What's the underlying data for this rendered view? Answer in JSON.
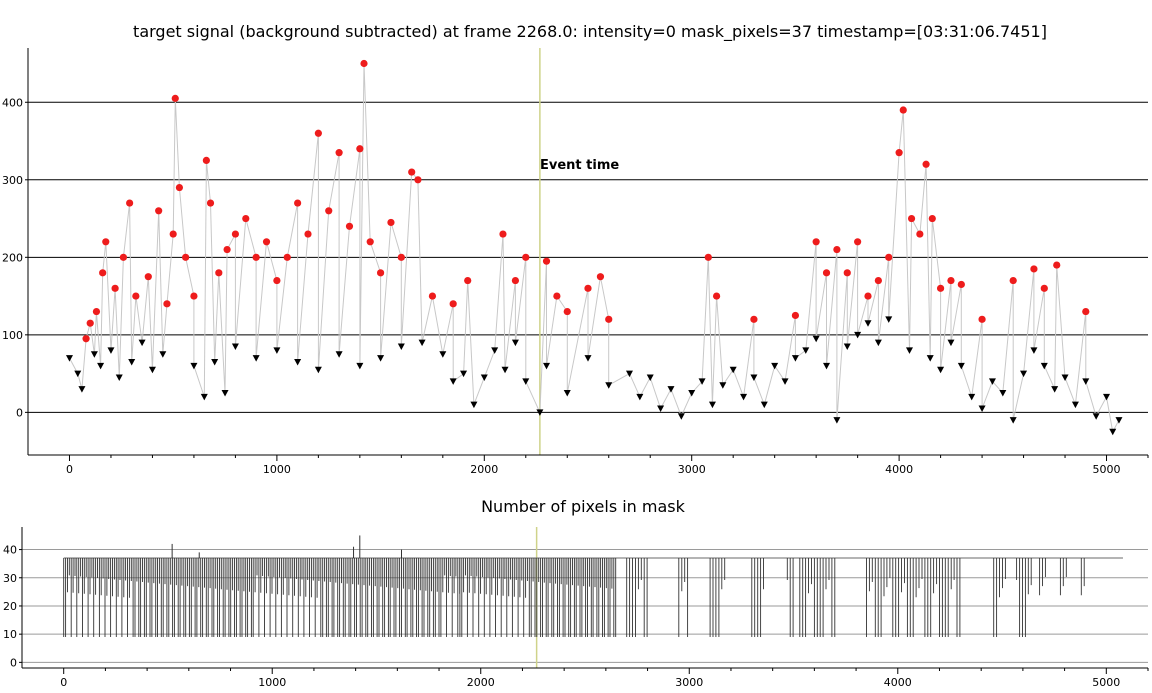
{
  "chart_data": [
    {
      "type": "scatter",
      "title": "target signal (background subtracted) at frame 2268.0: intensity=0 mask_pixels=37 timestamp=[03:31:06.7451]",
      "xlabel": "",
      "ylabel": "",
      "xlim": [
        -200,
        5200
      ],
      "ylim": [
        -55,
        470
      ],
      "xticks": [
        0,
        1000,
        2000,
        3000,
        4000,
        5000
      ],
      "yticks": [
        0,
        100,
        200,
        300,
        400
      ],
      "grid": "horizontal",
      "event_line": {
        "x": 2268,
        "label": "Event time",
        "color": "#cfd38a"
      },
      "colors": {
        "connector": "#c8c8c8",
        "high": "#ee1c1c",
        "low": "#000000"
      },
      "series": [
        {
          "marker": "circle",
          "color": "#ee1c1c",
          "points": [
            [
              80,
              95
            ],
            [
              100,
              115
            ],
            [
              130,
              130
            ],
            [
              160,
              180
            ],
            [
              175,
              220
            ],
            [
              220,
              160
            ],
            [
              260,
              200
            ],
            [
              290,
              270
            ],
            [
              320,
              150
            ],
            [
              380,
              175
            ],
            [
              430,
              260
            ],
            [
              470,
              140
            ],
            [
              500,
              230
            ],
            [
              510,
              405
            ],
            [
              530,
              290
            ],
            [
              560,
              200
            ],
            [
              600,
              150
            ],
            [
              660,
              325
            ],
            [
              680,
              270
            ],
            [
              720,
              180
            ],
            [
              760,
              210
            ],
            [
              800,
              230
            ],
            [
              850,
              250
            ],
            [
              900,
              200
            ],
            [
              950,
              220
            ],
            [
              1000,
              170
            ],
            [
              1050,
              200
            ],
            [
              1100,
              270
            ],
            [
              1150,
              230
            ],
            [
              1200,
              360
            ],
            [
              1250,
              260
            ],
            [
              1300,
              335
            ],
            [
              1350,
              240
            ],
            [
              1400,
              340
            ],
            [
              1420,
              450
            ],
            [
              1450,
              220
            ],
            [
              1500,
              180
            ],
            [
              1550,
              245
            ],
            [
              1600,
              200
            ],
            [
              1650,
              310
            ],
            [
              1680,
              300
            ],
            [
              1750,
              150
            ],
            [
              1850,
              140
            ],
            [
              1920,
              170
            ],
            [
              2090,
              230
            ],
            [
              2150,
              170
            ],
            [
              2200,
              200
            ],
            [
              2300,
              195
            ],
            [
              2350,
              150
            ],
            [
              2400,
              130
            ],
            [
              2500,
              160
            ],
            [
              2560,
              175
            ],
            [
              2600,
              120
            ],
            [
              3080,
              200
            ],
            [
              3120,
              150
            ],
            [
              3300,
              120
            ],
            [
              3500,
              125
            ],
            [
              3600,
              220
            ],
            [
              3650,
              180
            ],
            [
              3700,
              210
            ],
            [
              3750,
              180
            ],
            [
              3800,
              220
            ],
            [
              3850,
              150
            ],
            [
              3900,
              170
            ],
            [
              3950,
              200
            ],
            [
              4000,
              335
            ],
            [
              4020,
              390
            ],
            [
              4060,
              250
            ],
            [
              4100,
              230
            ],
            [
              4130,
              320
            ],
            [
              4160,
              250
            ],
            [
              4200,
              160
            ],
            [
              4250,
              170
            ],
            [
              4300,
              165
            ],
            [
              4400,
              120
            ],
            [
              4550,
              170
            ],
            [
              4650,
              185
            ],
            [
              4700,
              160
            ],
            [
              4760,
              190
            ],
            [
              4900,
              130
            ]
          ]
        },
        {
          "marker": "triangle-down",
          "color": "#000000",
          "points": [
            [
              0,
              70
            ],
            [
              40,
              50
            ],
            [
              60,
              30
            ],
            [
              120,
              75
            ],
            [
              150,
              60
            ],
            [
              200,
              80
            ],
            [
              240,
              45
            ],
            [
              300,
              65
            ],
            [
              350,
              90
            ],
            [
              400,
              55
            ],
            [
              450,
              75
            ],
            [
              600,
              60
            ],
            [
              650,
              20
            ],
            [
              700,
              65
            ],
            [
              750,
              25
            ],
            [
              800,
              85
            ],
            [
              900,
              70
            ],
            [
              1000,
              80
            ],
            [
              1100,
              65
            ],
            [
              1200,
              55
            ],
            [
              1300,
              75
            ],
            [
              1400,
              60
            ],
            [
              1500,
              70
            ],
            [
              1600,
              85
            ],
            [
              1700,
              90
            ],
            [
              1800,
              75
            ],
            [
              1850,
              40
            ],
            [
              1900,
              50
            ],
            [
              1950,
              10
            ],
            [
              2000,
              45
            ],
            [
              2050,
              80
            ],
            [
              2100,
              55
            ],
            [
              2150,
              90
            ],
            [
              2200,
              40
            ],
            [
              2268,
              0
            ],
            [
              2300,
              60
            ],
            [
              2400,
              25
            ],
            [
              2500,
              70
            ],
            [
              2600,
              35
            ],
            [
              2700,
              50
            ],
            [
              2750,
              20
            ],
            [
              2800,
              45
            ],
            [
              2850,
              5
            ],
            [
              2900,
              30
            ],
            [
              2950,
              -5
            ],
            [
              3000,
              25
            ],
            [
              3050,
              40
            ],
            [
              3100,
              10
            ],
            [
              3150,
              35
            ],
            [
              3200,
              55
            ],
            [
              3250,
              20
            ],
            [
              3300,
              45
            ],
            [
              3350,
              10
            ],
            [
              3400,
              60
            ],
            [
              3450,
              40
            ],
            [
              3500,
              70
            ],
            [
              3550,
              80
            ],
            [
              3600,
              95
            ],
            [
              3650,
              60
            ],
            [
              3700,
              -10
            ],
            [
              3750,
              85
            ],
            [
              3800,
              100
            ],
            [
              3850,
              115
            ],
            [
              3900,
              90
            ],
            [
              3950,
              120
            ],
            [
              4050,
              80
            ],
            [
              4150,
              70
            ],
            [
              4200,
              55
            ],
            [
              4250,
              90
            ],
            [
              4300,
              60
            ],
            [
              4350,
              20
            ],
            [
              4400,
              5
            ],
            [
              4450,
              40
            ],
            [
              4500,
              25
            ],
            [
              4550,
              -10
            ],
            [
              4600,
              50
            ],
            [
              4650,
              80
            ],
            [
              4700,
              60
            ],
            [
              4750,
              30
            ],
            [
              4800,
              45
            ],
            [
              4850,
              10
            ],
            [
              4900,
              40
            ],
            [
              4950,
              -5
            ],
            [
              5000,
              20
            ],
            [
              5030,
              -25
            ],
            [
              5060,
              -10
            ]
          ]
        }
      ]
    },
    {
      "type": "line",
      "title": "Number of pixels in mask",
      "xlabel": "",
      "ylabel": "",
      "xlim": [
        -200,
        5200
      ],
      "ylim": [
        -2,
        48
      ],
      "xticks": [
        0,
        1000,
        2000,
        3000,
        4000,
        5000
      ],
      "yticks": [
        0,
        10,
        20,
        30,
        40
      ],
      "grid": "horizontal",
      "baseline_value": 37,
      "min_value": 9,
      "peaks": [
        [
          520,
          42
        ],
        [
          650,
          39
        ],
        [
          1390,
          41
        ],
        [
          1420,
          45
        ],
        [
          1620,
          40
        ]
      ],
      "active_ranges": [
        [
          0,
          1900
        ],
        [
          1900,
          2650
        ],
        [
          2700,
          2800
        ],
        [
          2950,
          3000
        ],
        [
          3100,
          3170
        ],
        [
          3300,
          3360
        ],
        [
          3470,
          3500
        ],
        [
          3530,
          3700
        ],
        [
          3850,
          4300
        ],
        [
          4460,
          4520
        ],
        [
          4570,
          4640
        ],
        [
          4680,
          4720
        ],
        [
          4780,
          4820
        ],
        [
          4880,
          4900
        ]
      ],
      "end_x": 5080,
      "color": "#333333",
      "event_line": {
        "x": 2268,
        "color": "#cfd38a"
      }
    }
  ]
}
